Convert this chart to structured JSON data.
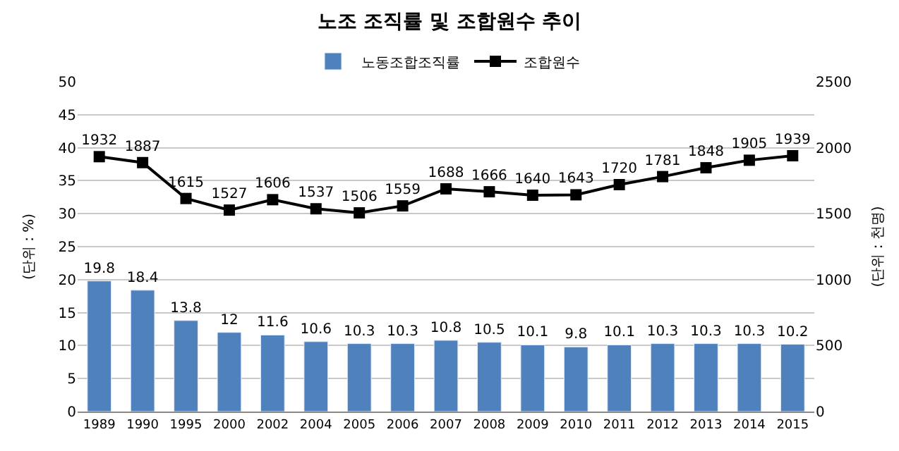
{
  "chart_data": {
    "type": "bar",
    "title": "노조 조직률 및 조합원수 추이",
    "ylabel": "(단위 : %)",
    "y2label": "(단위 : 천명)",
    "categories": [
      "1989",
      "1990",
      "1995",
      "2000",
      "2002",
      "2004",
      "2005",
      "2006",
      "2007",
      "2008",
      "2009",
      "2010",
      "2011",
      "2012",
      "2013",
      "2014",
      "2015"
    ],
    "series": [
      {
        "name": "노동조합조직률",
        "color": "#4f81bd",
        "values": [
          19.8,
          18.4,
          13.8,
          12,
          11.6,
          10.6,
          10.3,
          10.3,
          10.8,
          10.5,
          10.1,
          9.8,
          10.1,
          10.3,
          10.3,
          10.3,
          10.2
        ]
      },
      {
        "name": "조합원수",
        "type": "line",
        "axis": "y2",
        "color": "#000000",
        "marker": "square",
        "values": [
          1932,
          1887,
          1615,
          1527,
          1606,
          1537,
          1506,
          1559,
          1688,
          1666,
          1640,
          1643,
          1720,
          1781,
          1848,
          1905,
          1939
        ]
      }
    ],
    "ylim": [
      0,
      50
    ],
    "yticks": [
      0,
      5,
      10,
      15,
      20,
      25,
      30,
      35,
      40,
      45,
      50
    ],
    "y2lim": [
      0,
      2500
    ],
    "y2ticks": [
      0,
      500,
      1000,
      1500,
      2000,
      2500
    ],
    "grid": "y",
    "legend": "top",
    "data_labels": true
  }
}
